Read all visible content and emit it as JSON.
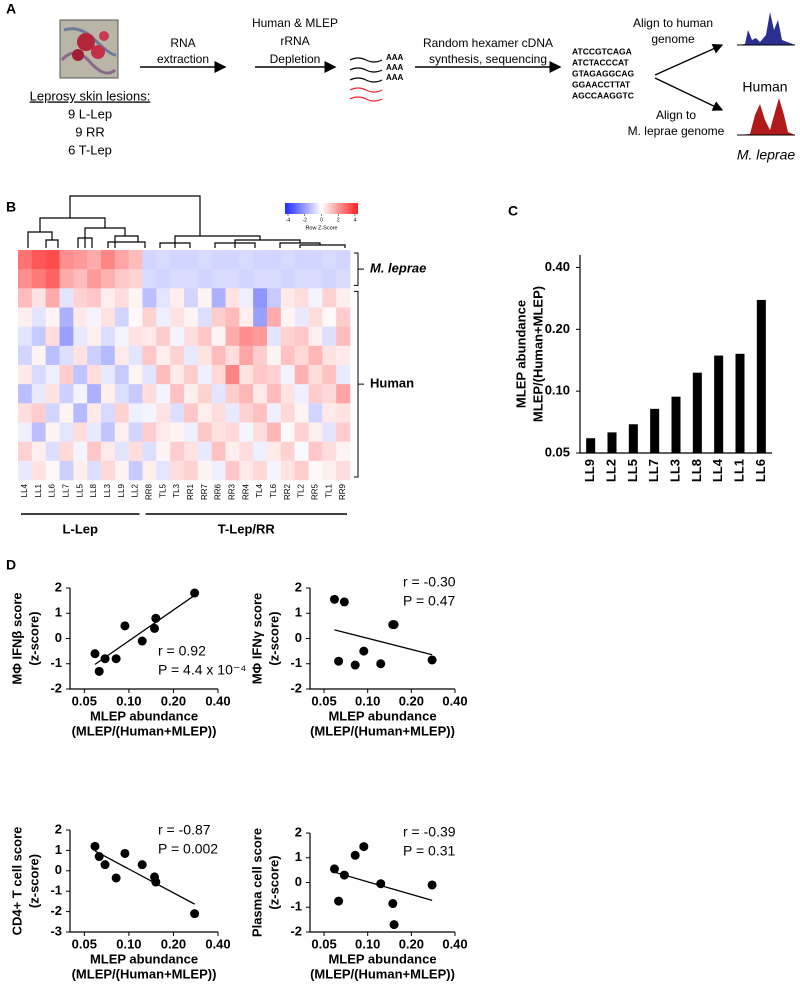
{
  "panel_labels": [
    "A",
    "B",
    "C",
    "D"
  ],
  "workflow": {
    "sample_label": "Leprosy skin lesions:",
    "sample_counts": [
      "9 L-Lep",
      "9 RR",
      "6 T-Lep"
    ],
    "steps": [
      [
        "RNA",
        "extraction"
      ],
      [
        "Human & MLEP",
        "rRNA",
        "Depletion"
      ],
      [
        "Random hexamer cDNA",
        "synthesis, sequencing"
      ]
    ],
    "polyA": [
      "AAA",
      "AAA",
      "AAA"
    ],
    "sequences": [
      {
        "text": "ATCCGTCAGA",
        "color": "#000000"
      },
      {
        "text": "ATCTACCCAT",
        "color": "#000000"
      },
      {
        "text": "GTAGAGGCAG",
        "color": "#000000"
      },
      {
        "text": "GGAACCTTAT",
        "color": "#e8262b"
      },
      {
        "text": "AGCCAAGGTC",
        "color": "#e8262b"
      }
    ],
    "alignments": [
      {
        "text": [
          "Align to human",
          "genome"
        ],
        "genome": "Human",
        "color": "#2b2f8f"
      },
      {
        "text": [
          "Align to",
          "M. leprae genome"
        ],
        "genome": "M. leprae",
        "color": "#b11a1a"
      }
    ]
  },
  "chart_data": [
    {
      "type": "heatmap",
      "zlim": [
        -4,
        4
      ],
      "zticks": [
        -4,
        -2,
        0,
        2,
        4
      ],
      "scale_label": "Row Z-Score",
      "colormap": [
        "#1f2bff",
        "#ffffff",
        "#ff1f1f"
      ],
      "column_groups": [
        {
          "name": "L-Lep",
          "columns": [
            "LL4",
            "LL1",
            "LL6",
            "LL7",
            "LL5",
            "LL8",
            "LL3",
            "LL9",
            "LL2"
          ]
        },
        {
          "name": "T-Lep/RR",
          "columns": [
            "RR8",
            "TL5",
            "TL3",
            "RR1",
            "RR7",
            "RR6",
            "RR3",
            "RR4",
            "TL4",
            "TL6",
            "RR2",
            "TL2",
            "RR5",
            "TL1",
            "RR9"
          ]
        }
      ],
      "row_groups": [
        {
          "name": "M. leprae",
          "values": [
            [
              2.5,
              3,
              3.2,
              2,
              1.8,
              1.5,
              2.2,
              1.6,
              1.2,
              -0.8,
              -0.7,
              -0.8,
              -0.8,
              -0.7,
              -0.8,
              -0.8,
              -0.7,
              -0.8,
              -0.8,
              -0.7,
              -0.8,
              -0.8,
              -0.7,
              -0.8
            ],
            [
              2,
              2.4,
              2.8,
              1.5,
              1.2,
              1.8,
              1.4,
              1,
              0.8,
              -0.7,
              -0.8,
              -0.7,
              -0.7,
              -0.8,
              -0.7,
              -0.7,
              -0.8,
              -0.7,
              -0.7,
              -0.8,
              -0.7,
              -0.7,
              -0.8,
              -0.7
            ]
          ]
        },
        {
          "name": "Human",
          "values": [
            [
              1.2,
              0.5,
              1.5,
              -0.5,
              0.8,
              1,
              0.3,
              0.6,
              0.2,
              -1.2,
              -0.5,
              0.3,
              -0.8,
              0.2,
              -1.5,
              0.5,
              -0.3,
              -2,
              -1,
              0.4,
              0.6,
              -0.2,
              0.8,
              0.3
            ],
            [
              0.3,
              -0.5,
              0.2,
              -1.5,
              0.4,
              -0.2,
              0.5,
              -0.8,
              0.1,
              0.8,
              -0.3,
              0.5,
              0.2,
              -0.6,
              0.9,
              1.2,
              0.3,
              -1.8,
              1.5,
              0.2,
              -0.4,
              0.6,
              0.1,
              0.9
            ],
            [
              -0.5,
              -1,
              0.6,
              -1.8,
              -0.4,
              0.3,
              -0.6,
              -0.2,
              0.5,
              0.4,
              0.9,
              -0.2,
              0.6,
              1,
              0.2,
              1.5,
              2,
              1.8,
              -0.5,
              0.8,
              1,
              0.3,
              -0.6,
              1.2
            ],
            [
              -0.8,
              0.2,
              -1.2,
              -0.6,
              0.5,
              -0.9,
              -1.3,
              0.4,
              -0.5,
              1,
              0.3,
              0.8,
              -0.4,
              0.5,
              1.2,
              0.6,
              1.6,
              0.9,
              0.2,
              1.1,
              0.7,
              1.3,
              0.5,
              0.4
            ],
            [
              0.4,
              -0.7,
              -0.3,
              0.9,
              -1.1,
              0.6,
              -0.4,
              -1,
              0.2,
              -0.5,
              1.2,
              0.4,
              0.9,
              -0.3,
              0.7,
              2.2,
              0.5,
              1,
              0.8,
              -0.2,
              1.4,
              0.6,
              1.1,
              -0.4
            ],
            [
              -1.2,
              -0.4,
              0.5,
              -0.9,
              -0.2,
              -1.5,
              0.3,
              -0.6,
              -1,
              0.6,
              -0.2,
              1.1,
              0.3,
              0.8,
              -0.5,
              0.9,
              1.3,
              0.4,
              1.2,
              0.5,
              -0.3,
              0.9,
              0.7,
              1.6
            ],
            [
              0.6,
              0.9,
              -0.8,
              0.2,
              -1.3,
              0.4,
              -0.7,
              0.8,
              -0.3,
              -0.2,
              0.5,
              -0.6,
              1,
              0.3,
              0.6,
              -0.4,
              0.8,
              1.1,
              -0.3,
              0.7,
              0.2,
              -0.8,
              0.4,
              0.5
            ],
            [
              -0.3,
              -1.2,
              0.2,
              -0.5,
              0.6,
              -0.4,
              -1.1,
              0.3,
              -0.8,
              0.9,
              0.4,
              0.2,
              -0.3,
              1,
              0.5,
              0.7,
              -0.2,
              0.6,
              1.3,
              0.1,
              0.8,
              0.3,
              -0.5,
              0.9
            ],
            [
              0.8,
              0.3,
              -0.6,
              0.7,
              -0.2,
              1,
              0.4,
              -0.5,
              0.6,
              -0.6,
              0.2,
              0.9,
              0.5,
              -0.4,
              1.1,
              0.3,
              0.6,
              -0.3,
              0.4,
              0.8,
              -0.1,
              1,
              0.6,
              0.2
            ],
            [
              -0.4,
              0.5,
              0.1,
              -0.9,
              0.3,
              -0.6,
              0.7,
              0.2,
              -1,
              0.3,
              -0.5,
              0.6,
              0.8,
              0.2,
              -0.3,
              1,
              0.4,
              0.7,
              -0.2,
              0.5,
              0.9,
              0.1,
              0.3,
              0.6
            ]
          ]
        }
      ]
    },
    {
      "type": "bar",
      "ylabel": [
        "MLEP abundance",
        "MLEP/(Human+MLEP)"
      ],
      "categories": [
        "LL9",
        "LL2",
        "LL5",
        "LL7",
        "LL3",
        "LL8",
        "LL4",
        "LL1",
        "LL6"
      ],
      "values": [
        0.059,
        0.063,
        0.069,
        0.082,
        0.094,
        0.123,
        0.149,
        0.152,
        0.278
      ],
      "color": "#000000",
      "yscale": "log",
      "ylim": [
        0.05,
        0.46
      ],
      "yticks": [
        0.05,
        {
          "value": 0.1,
          "label": "0.10"
        },
        {
          "value": 0.2,
          "label": "0.20"
        },
        {
          "value": 0.4,
          "label": "0.40"
        }
      ]
    },
    {
      "type": "scatter",
      "ylabel": [
        "MΦ IFNβ score",
        "(z-score)"
      ],
      "xlabel": [
        "MLEP abundance",
        "(MLEP/(Human+MLEP))"
      ],
      "x": [
        0.059,
        0.063,
        0.069,
        0.082,
        0.094,
        0.123,
        0.149,
        0.152,
        0.278
      ],
      "values": [
        -0.6,
        -1.3,
        -0.8,
        -0.8,
        0.5,
        -0.1,
        0.4,
        0.8,
        1.8
      ],
      "annotations": [
        "r = 0.92",
        "P = 4.4 x 10⁻⁴"
      ],
      "color": "#000000",
      "trendline": true,
      "xscale": "log",
      "xlim": [
        0.04,
        0.4
      ],
      "xticks": [
        0.05,
        {
          "value": 0.1,
          "label": "0.10"
        },
        {
          "value": 0.2,
          "label": "0.20"
        },
        {
          "value": 0.4,
          "label": "0.40"
        }
      ],
      "ylim": [
        -2,
        2
      ],
      "yticks": [
        2,
        1,
        0,
        -1,
        -2
      ]
    },
    {
      "type": "scatter",
      "ylabel": [
        "MΦ IFNγ score",
        "(z-score)"
      ],
      "xlabel": [
        "MLEP abundance",
        "(MLEP/(Human+MLEP))"
      ],
      "x": [
        0.059,
        0.063,
        0.069,
        0.082,
        0.094,
        0.123,
        0.149,
        0.152,
        0.278
      ],
      "values": [
        1.55,
        -0.9,
        1.45,
        -1.05,
        -0.5,
        -1,
        0.55,
        0.55,
        -0.85
      ],
      "annotations": [
        "r = -0.30",
        "P = 0.47"
      ],
      "color": "#000000",
      "trendline": true,
      "xscale": "log",
      "xlim": [
        0.04,
        0.4
      ],
      "xticks": [
        0.05,
        {
          "value": 0.1,
          "label": "0.10"
        },
        {
          "value": 0.2,
          "label": "0.20"
        },
        {
          "value": 0.4,
          "label": "0.40"
        }
      ],
      "ylim": [
        -2,
        2
      ],
      "yticks": [
        2,
        1,
        0,
        -1,
        -2
      ]
    },
    {
      "type": "scatter",
      "ylabel": [
        "CD4+ T cell score",
        "(z-score)"
      ],
      "xlabel": [
        "MLEP abundance",
        "(MLEP/(Human+MLEP))"
      ],
      "x": [
        0.059,
        0.063,
        0.069,
        0.082,
        0.094,
        0.123,
        0.149,
        0.152,
        0.278
      ],
      "values": [
        1.2,
        0.7,
        0.3,
        -0.35,
        0.85,
        0.3,
        -0.3,
        -0.55,
        -2.1
      ],
      "annotations": [
        "r = -0.87",
        "P = 0.002"
      ],
      "color": "#000000",
      "trendline": true,
      "xscale": "log",
      "xlim": [
        0.04,
        0.4
      ],
      "xticks": [
        0.05,
        {
          "value": 0.1,
          "label": "0.10"
        },
        {
          "value": 0.2,
          "label": "0.20"
        },
        {
          "value": 0.4,
          "label": "0.40"
        }
      ],
      "ylim": [
        -3,
        2
      ],
      "yticks": [
        2,
        1,
        0,
        -1,
        -2,
        -3
      ]
    },
    {
      "type": "scatter",
      "ylabel": [
        "Plasma cell score",
        "(z-score)"
      ],
      "xlabel": [
        "MLEP abundance",
        "(MLEP/(Human+MLEP))"
      ],
      "x": [
        0.059,
        0.063,
        0.069,
        0.082,
        0.094,
        0.123,
        0.149,
        0.152,
        0.278
      ],
      "values": [
        0.55,
        -0.75,
        0.3,
        1.1,
        1.45,
        -0.05,
        -0.85,
        -1.7,
        -0.1
      ],
      "annotations": [
        "r = -0.39",
        "P = 0.31"
      ],
      "color": "#000000",
      "trendline": true,
      "xscale": "log",
      "xlim": [
        0.04,
        0.4
      ],
      "xticks": [
        0.05,
        {
          "value": 0.1,
          "label": "0.10"
        },
        {
          "value": 0.2,
          "label": "0.20"
        },
        {
          "value": 0.4,
          "label": "0.40"
        }
      ],
      "ylim": [
        -2,
        2
      ],
      "yticks": [
        2,
        1,
        0,
        -1,
        -2
      ]
    }
  ]
}
